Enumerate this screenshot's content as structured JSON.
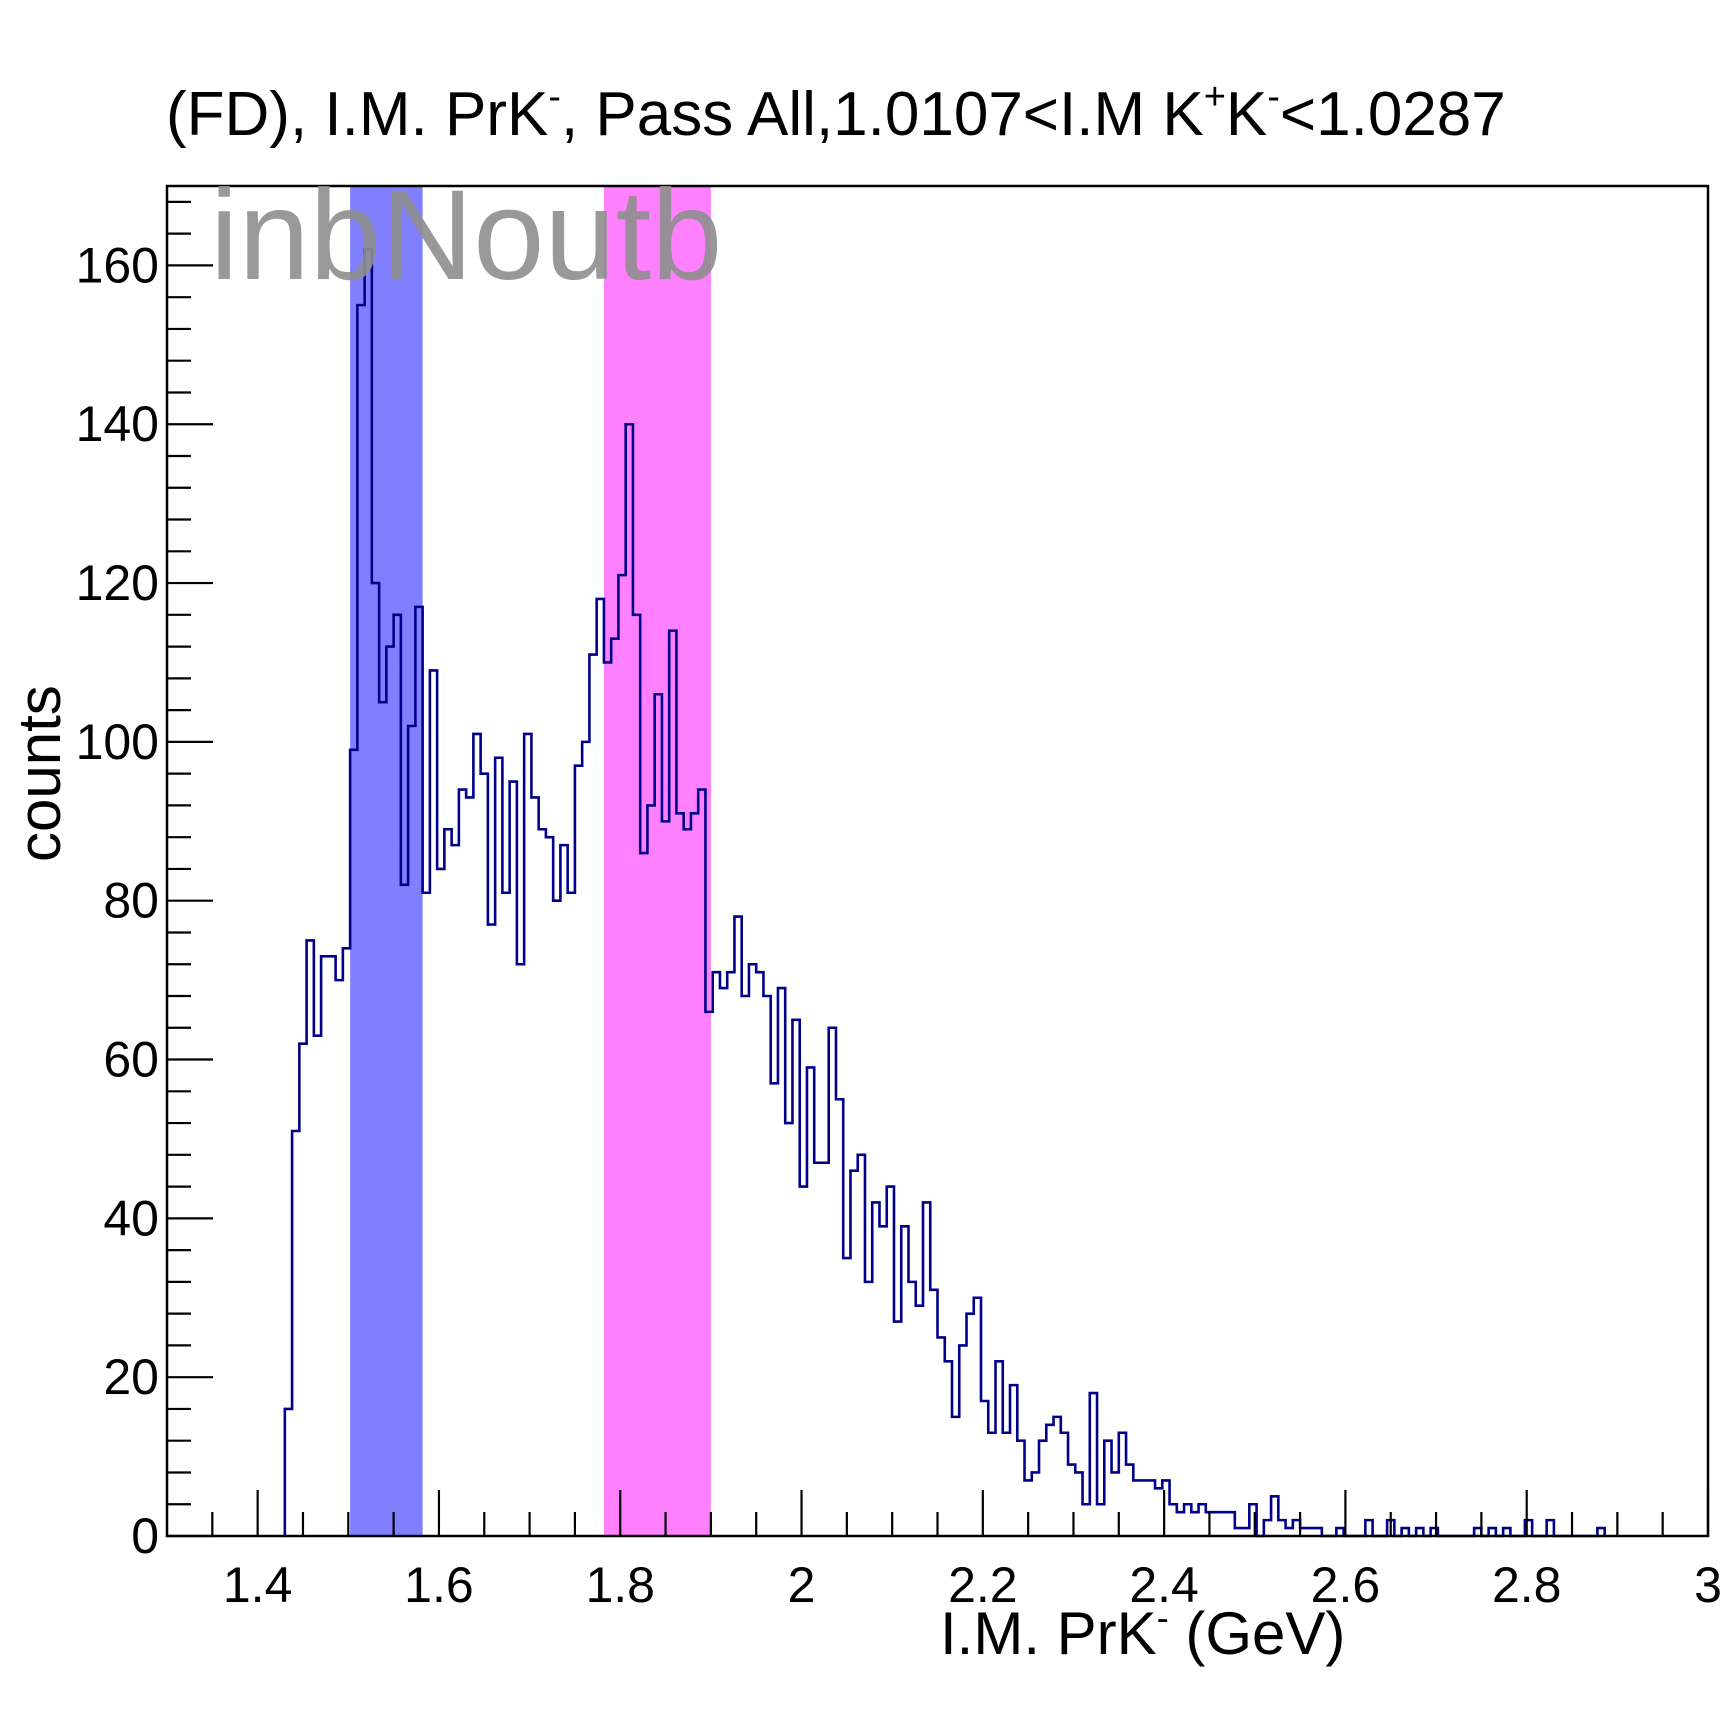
{
  "chart_data": {
    "type": "histogram",
    "title": {
      "parts": [
        {
          "text": "(FD), I.M. PrK"
        },
        {
          "text": "-",
          "sup": true
        },
        {
          "text": ", Pass All,1.0107<I.M K"
        },
        {
          "text": "+",
          "sup": true
        },
        {
          "text": "K"
        },
        {
          "text": "-",
          "sup": true
        },
        {
          "text": "<1.0287"
        }
      ]
    },
    "watermark": "inbNoutb",
    "xlabel": {
      "parts": [
        {
          "text": "I.M. PrK"
        },
        {
          "text": "-",
          "sup": true
        },
        {
          "text": " (GeV)"
        }
      ]
    },
    "ylabel": "counts",
    "xlim": [
      1.3,
      3.0
    ],
    "ylim": [
      0,
      170
    ],
    "xticks": [
      1.4,
      1.6,
      1.8,
      2.0,
      2.2,
      2.4,
      2.6,
      2.8,
      3.0
    ],
    "xtick_labels": [
      "1.4",
      "1.6",
      "1.8",
      "2",
      "2.2",
      "2.4",
      "2.6",
      "2.8",
      "3"
    ],
    "yticks": [
      0,
      20,
      40,
      60,
      80,
      100,
      120,
      140,
      160
    ],
    "ytick_labels": [
      "0",
      "20",
      "40",
      "60",
      "80",
      "100",
      "120",
      "140",
      "160"
    ],
    "bin_start": 1.43,
    "bin_width": 0.008,
    "counts": [
      16,
      51,
      62,
      75,
      63,
      73,
      73,
      70,
      74,
      99,
      155,
      162,
      120,
      105,
      112,
      116,
      82,
      102,
      117,
      81,
      109,
      84,
      89,
      87,
      94,
      93,
      101,
      96,
      77,
      98,
      81,
      95,
      72,
      101,
      93,
      89,
      88,
      80,
      87,
      81,
      97,
      100,
      111,
      118,
      110,
      113,
      121,
      140,
      116,
      86,
      92,
      106,
      90,
      114,
      91,
      89,
      91,
      94,
      66,
      71,
      69,
      71,
      78,
      68,
      72,
      71,
      68,
      57,
      69,
      52,
      65,
      44,
      59,
      47,
      47,
      64,
      55,
      35,
      46,
      48,
      32,
      42,
      39,
      44,
      27,
      39,
      32,
      29,
      42,
      31,
      25,
      22,
      15,
      24,
      28,
      30,
      17,
      13,
      22,
      13,
      19,
      12,
      7,
      8,
      12,
      14,
      15,
      13,
      9,
      8,
      4,
      18,
      4,
      12,
      8,
      13,
      9,
      7,
      7,
      7,
      6,
      7,
      4,
      3,
      4,
      3,
      4,
      3,
      3,
      3,
      3,
      1,
      1,
      4,
      0,
      2,
      5,
      2,
      1,
      2,
      1,
      1,
      1,
      0,
      0,
      1,
      0,
      0,
      0,
      2,
      0,
      0,
      2,
      0,
      1,
      0,
      1,
      0,
      1,
      0,
      0,
      0,
      0,
      0,
      1,
      0,
      1,
      0,
      1,
      0,
      0,
      2,
      0,
      0,
      2,
      0,
      0,
      0,
      0,
      0,
      0,
      1
    ],
    "line_color": "#00008b",
    "bands": [
      {
        "x0": 1.502,
        "x1": 1.582,
        "color": "#8080ff"
      },
      {
        "x0": 1.782,
        "x1": 1.9,
        "color": "#ff80ff"
      }
    ],
    "grid": false,
    "legend": "none"
  }
}
